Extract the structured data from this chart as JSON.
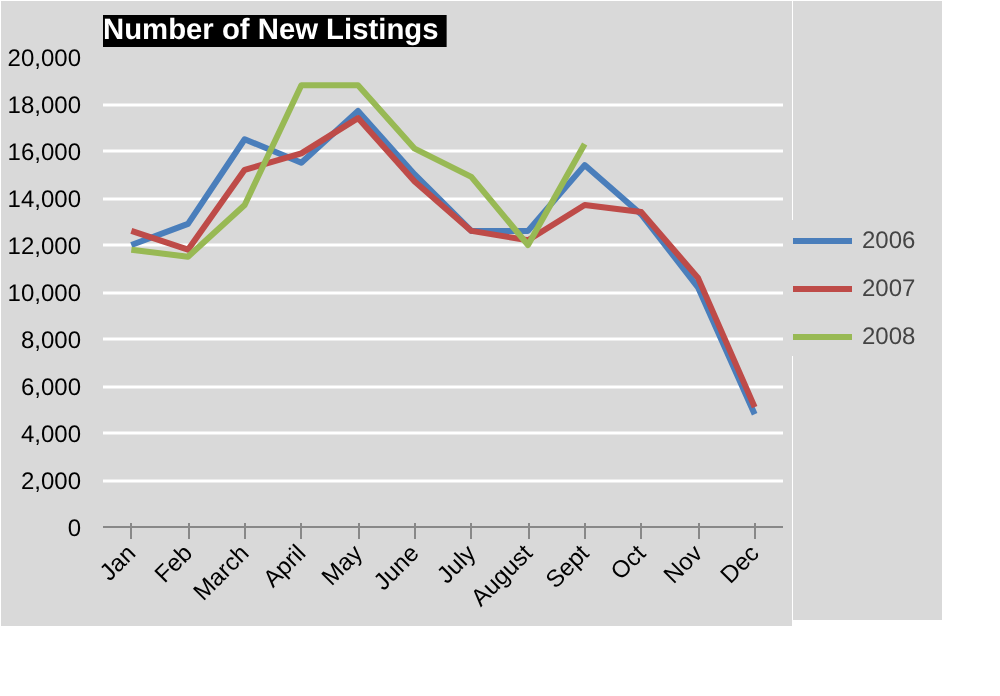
{
  "chart_data": {
    "type": "line",
    "title": "Number of  New Listings",
    "categories": [
      "Jan",
      "Feb",
      "March",
      "April",
      "May",
      "June",
      "July",
      "August",
      "Sept",
      "Oct",
      "Nov",
      "Dec"
    ],
    "series": [
      {
        "name": "2006",
        "color": "#4a7ebb",
        "values": [
          12000,
          12900,
          16500,
          15500,
          17700,
          15000,
          12600,
          12600,
          15400,
          13300,
          10200,
          4800
        ]
      },
      {
        "name": "2007",
        "color": "#be4b48",
        "values": [
          12600,
          11800,
          15200,
          15900,
          17400,
          14700,
          12600,
          12200,
          13700,
          13400,
          10600,
          5100
        ]
      },
      {
        "name": "2008",
        "color": "#98b954",
        "values": [
          11800,
          11500,
          13700,
          18800,
          18800,
          16100,
          14900,
          12000,
          16300,
          null,
          null,
          null
        ]
      }
    ],
    "ylim": [
      0,
      20000
    ],
    "yticks": [
      {
        "value": 0,
        "label": "0"
      },
      {
        "value": 2000,
        "label": "2,000"
      },
      {
        "value": 4000,
        "label": "4,000"
      },
      {
        "value": 6000,
        "label": "6,000"
      },
      {
        "value": 8000,
        "label": "8,000"
      },
      {
        "value": 10000,
        "label": "10,000"
      },
      {
        "value": 12000,
        "label": "12,000"
      },
      {
        "value": 14000,
        "label": "14,000"
      },
      {
        "value": 16000,
        "label": "16,000"
      },
      {
        "value": 18000,
        "label": "18,000"
      },
      {
        "value": 20000,
        "label": "20,000"
      }
    ],
    "grid": "y",
    "legend": "right",
    "line_style": "solid"
  }
}
